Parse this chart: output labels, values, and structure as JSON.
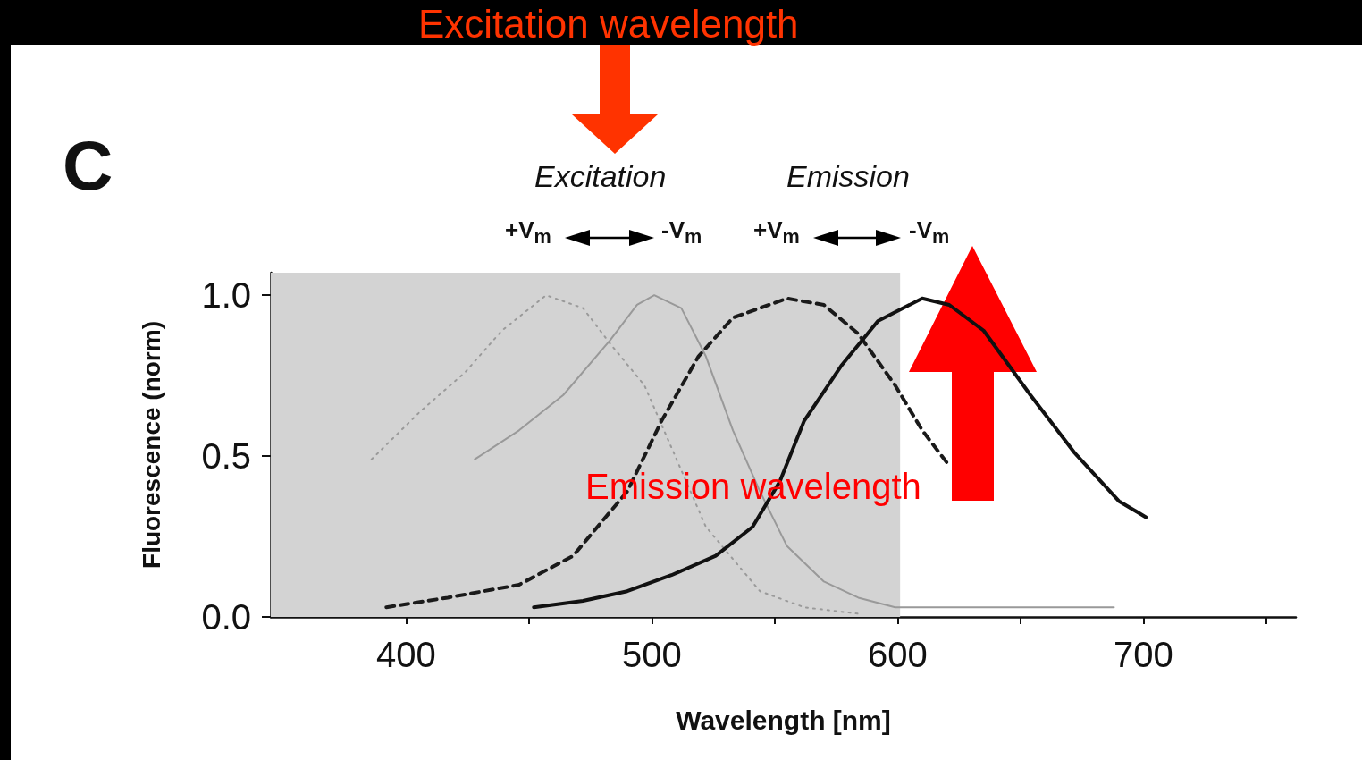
{
  "chart_data": {
    "type": "line",
    "xlabel": "Wavelength [nm]",
    "ylabel": "Fluorescence (norm)",
    "xlim": [
      345,
      762
    ],
    "ylim": [
      0,
      1.07
    ],
    "xticks": [
      400,
      {
        "value": 450,
        "label": null
      },
      500,
      {
        "value": 550,
        "label": null
      },
      600,
      {
        "value": 650,
        "label": null
      },
      700,
      {
        "value": 750,
        "label": null
      }
    ],
    "yticks": [
      {
        "value": 0,
        "label": "0.0"
      },
      {
        "value": 0.5,
        "label": "0.5"
      },
      {
        "value": 1,
        "label": "1.0"
      }
    ],
    "grid": false,
    "series": [
      {
        "color": "#9a9a9a",
        "line_style": "dotted",
        "x": [
          386,
          406,
          424,
          439,
          457,
          472,
          483,
          497,
          522,
          544,
          562,
          584
        ],
        "values": [
          0.49,
          0.64,
          0.76,
          0.89,
          1.0,
          0.96,
          0.85,
          0.72,
          0.28,
          0.08,
          0.03,
          0.01
        ]
      },
      {
        "color": "#999999",
        "line_style": "solid",
        "x": [
          428,
          446,
          464,
          483,
          494,
          501,
          512,
          522,
          533,
          544,
          555,
          570,
          584,
          599,
          640,
          688
        ],
        "values": [
          0.49,
          0.58,
          0.69,
          0.86,
          0.97,
          1.0,
          0.96,
          0.81,
          0.58,
          0.39,
          0.22,
          0.11,
          0.06,
          0.03,
          0.03,
          0.03
        ]
      },
      {
        "color": "#1a1a1a",
        "line_style": "dashed",
        "x": [
          392,
          417,
          446,
          468,
          490,
          504,
          519,
          533,
          555,
          570,
          584,
          599,
          610,
          621
        ],
        "values": [
          0.03,
          0.06,
          0.1,
          0.19,
          0.39,
          0.61,
          0.81,
          0.93,
          0.99,
          0.97,
          0.88,
          0.72,
          0.58,
          0.47
        ]
      },
      {
        "color": "#111111",
        "line_style": "solid",
        "x": [
          452,
          472,
          490,
          508,
          526,
          541,
          552,
          562,
          577,
          592,
          610,
          621,
          635,
          654,
          672,
          690,
          701
        ],
        "values": [
          0.03,
          0.05,
          0.08,
          0.13,
          0.19,
          0.28,
          0.42,
          0.61,
          0.78,
          0.92,
          0.99,
          0.97,
          0.89,
          0.69,
          0.51,
          0.36,
          0.31
        ]
      }
    ],
    "bands": [
      {
        "axis": "x",
        "from": 345,
        "to": 601,
        "color": "#d3d3d3"
      }
    ],
    "annotations": [
      "C",
      "Excitation",
      "Emission",
      "+V$_{m}$",
      "-V$_{m}$",
      "+V$_{m}$",
      "-V$_{m}$",
      "Excitation wavelength",
      "Emission wavelength"
    ]
  }
}
